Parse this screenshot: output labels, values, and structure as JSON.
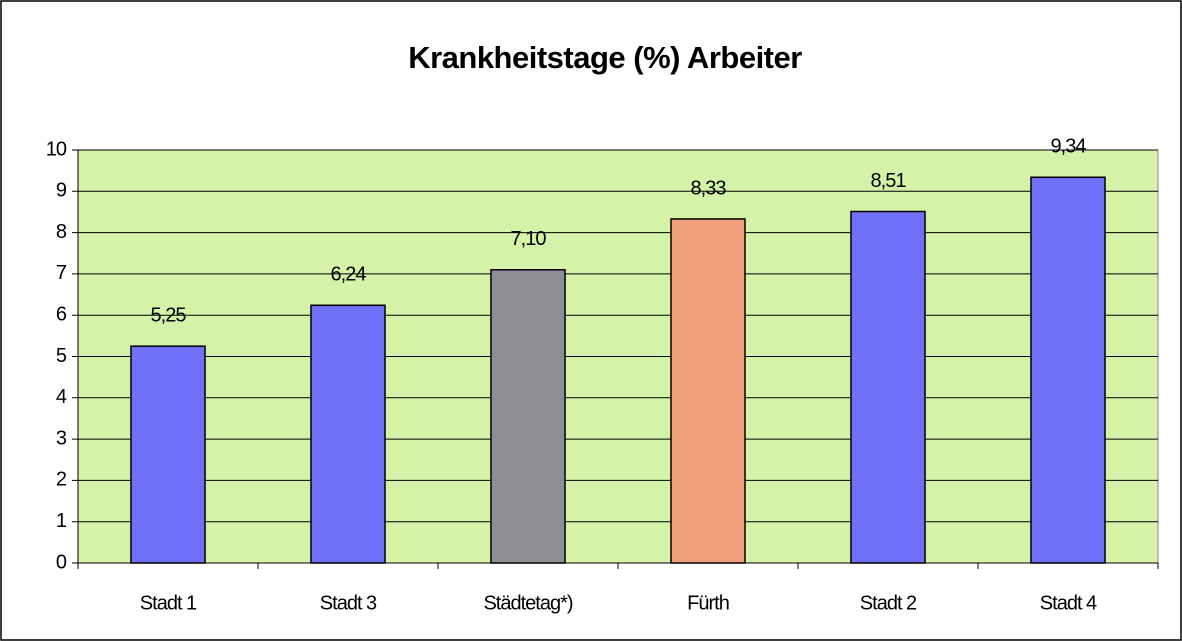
{
  "chart_data": {
    "type": "bar",
    "title": "Krankheitstage (%) Arbeiter",
    "categories": [
      "Stadt 1",
      "Stadt 3",
      "Städtetag*)",
      "Fürth",
      "Stadt 2",
      "Stadt 4"
    ],
    "values": [
      5.25,
      6.24,
      7.1,
      8.33,
      8.51,
      9.34
    ],
    "value_labels": [
      "5,25",
      "6,24",
      "7,10",
      "8,33",
      "8,51",
      "9,34"
    ],
    "colors": [
      "#7070f8",
      "#7070f8",
      "#8e8e94",
      "#f0a07a",
      "#7070f8",
      "#7070f8"
    ],
    "plot_background": "#d4f2a8",
    "ylim": [
      0,
      10
    ],
    "yticks": [
      0,
      1,
      2,
      3,
      4,
      5,
      6,
      7,
      8,
      9,
      10
    ],
    "grid": true
  }
}
